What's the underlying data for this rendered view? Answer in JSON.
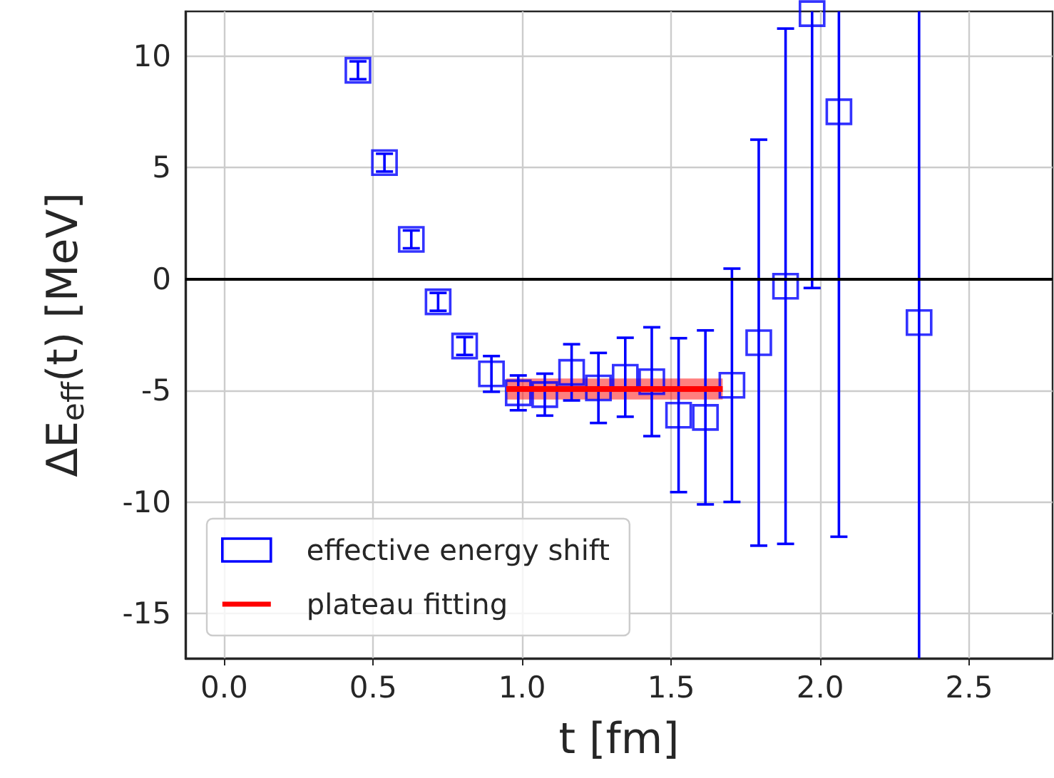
{
  "chart_data": {
    "type": "scatter",
    "xlabel": "t [fm]",
    "ylabel": "ΔE$_{eff}$(t) [MeV]",
    "xlim": [
      -0.13,
      2.78
    ],
    "ylim": [
      -17,
      12
    ],
    "xticks": [
      {
        "value": 0,
        "label": "0.0"
      },
      {
        "value": 0.5,
        "label": "0.5"
      },
      {
        "value": 1,
        "label": "1.0"
      },
      {
        "value": 1.5,
        "label": "1.5"
      },
      {
        "value": 2,
        "label": "2.0"
      },
      {
        "value": 2.5,
        "label": "2.5"
      }
    ],
    "yticks": [
      -15,
      -10,
      -5,
      0,
      5,
      10
    ],
    "grid": true,
    "legend": "bottom left",
    "ref_lines": [
      {
        "axis": "y",
        "value": 0,
        "color": "#000000"
      }
    ],
    "series": [
      {
        "name": "effective energy shift",
        "type": "scatter",
        "marker": "square",
        "color": "#0000ff",
        "x": [
          0.449,
          0.538,
          0.628,
          0.718,
          0.807,
          0.897,
          0.987,
          1.076,
          1.166,
          1.256,
          1.346,
          1.435,
          1.525,
          1.615,
          1.704,
          1.794,
          1.884,
          1.973,
          2.063,
          2.332
        ],
        "values": [
          9.36,
          5.22,
          1.78,
          -1.02,
          -3.0,
          -4.25,
          -5.1,
          -5.18,
          -4.18,
          -4.88,
          -4.4,
          -4.6,
          -6.1,
          -6.2,
          -4.76,
          -2.85,
          -0.32,
          11.9,
          7.5,
          -1.95
        ],
        "errors": [
          0.4,
          0.4,
          0.4,
          0.4,
          0.4,
          0.8,
          0.78,
          0.94,
          1.26,
          1.57,
          1.77,
          2.44,
          3.45,
          3.9,
          5.23,
          9.1,
          11.55,
          12.3,
          19.05,
          20
        ]
      },
      {
        "name": "plateau fitting",
        "type": "line",
        "color": "#ff0000",
        "line_style": "solid",
        "marker": "none",
        "x": [
          0.947,
          1.673
        ],
        "values": [
          -4.93,
          -4.93
        ],
        "lower": [
          -5.4,
          -5.4
        ],
        "upper": [
          -4.46,
          -4.46
        ]
      }
    ]
  }
}
